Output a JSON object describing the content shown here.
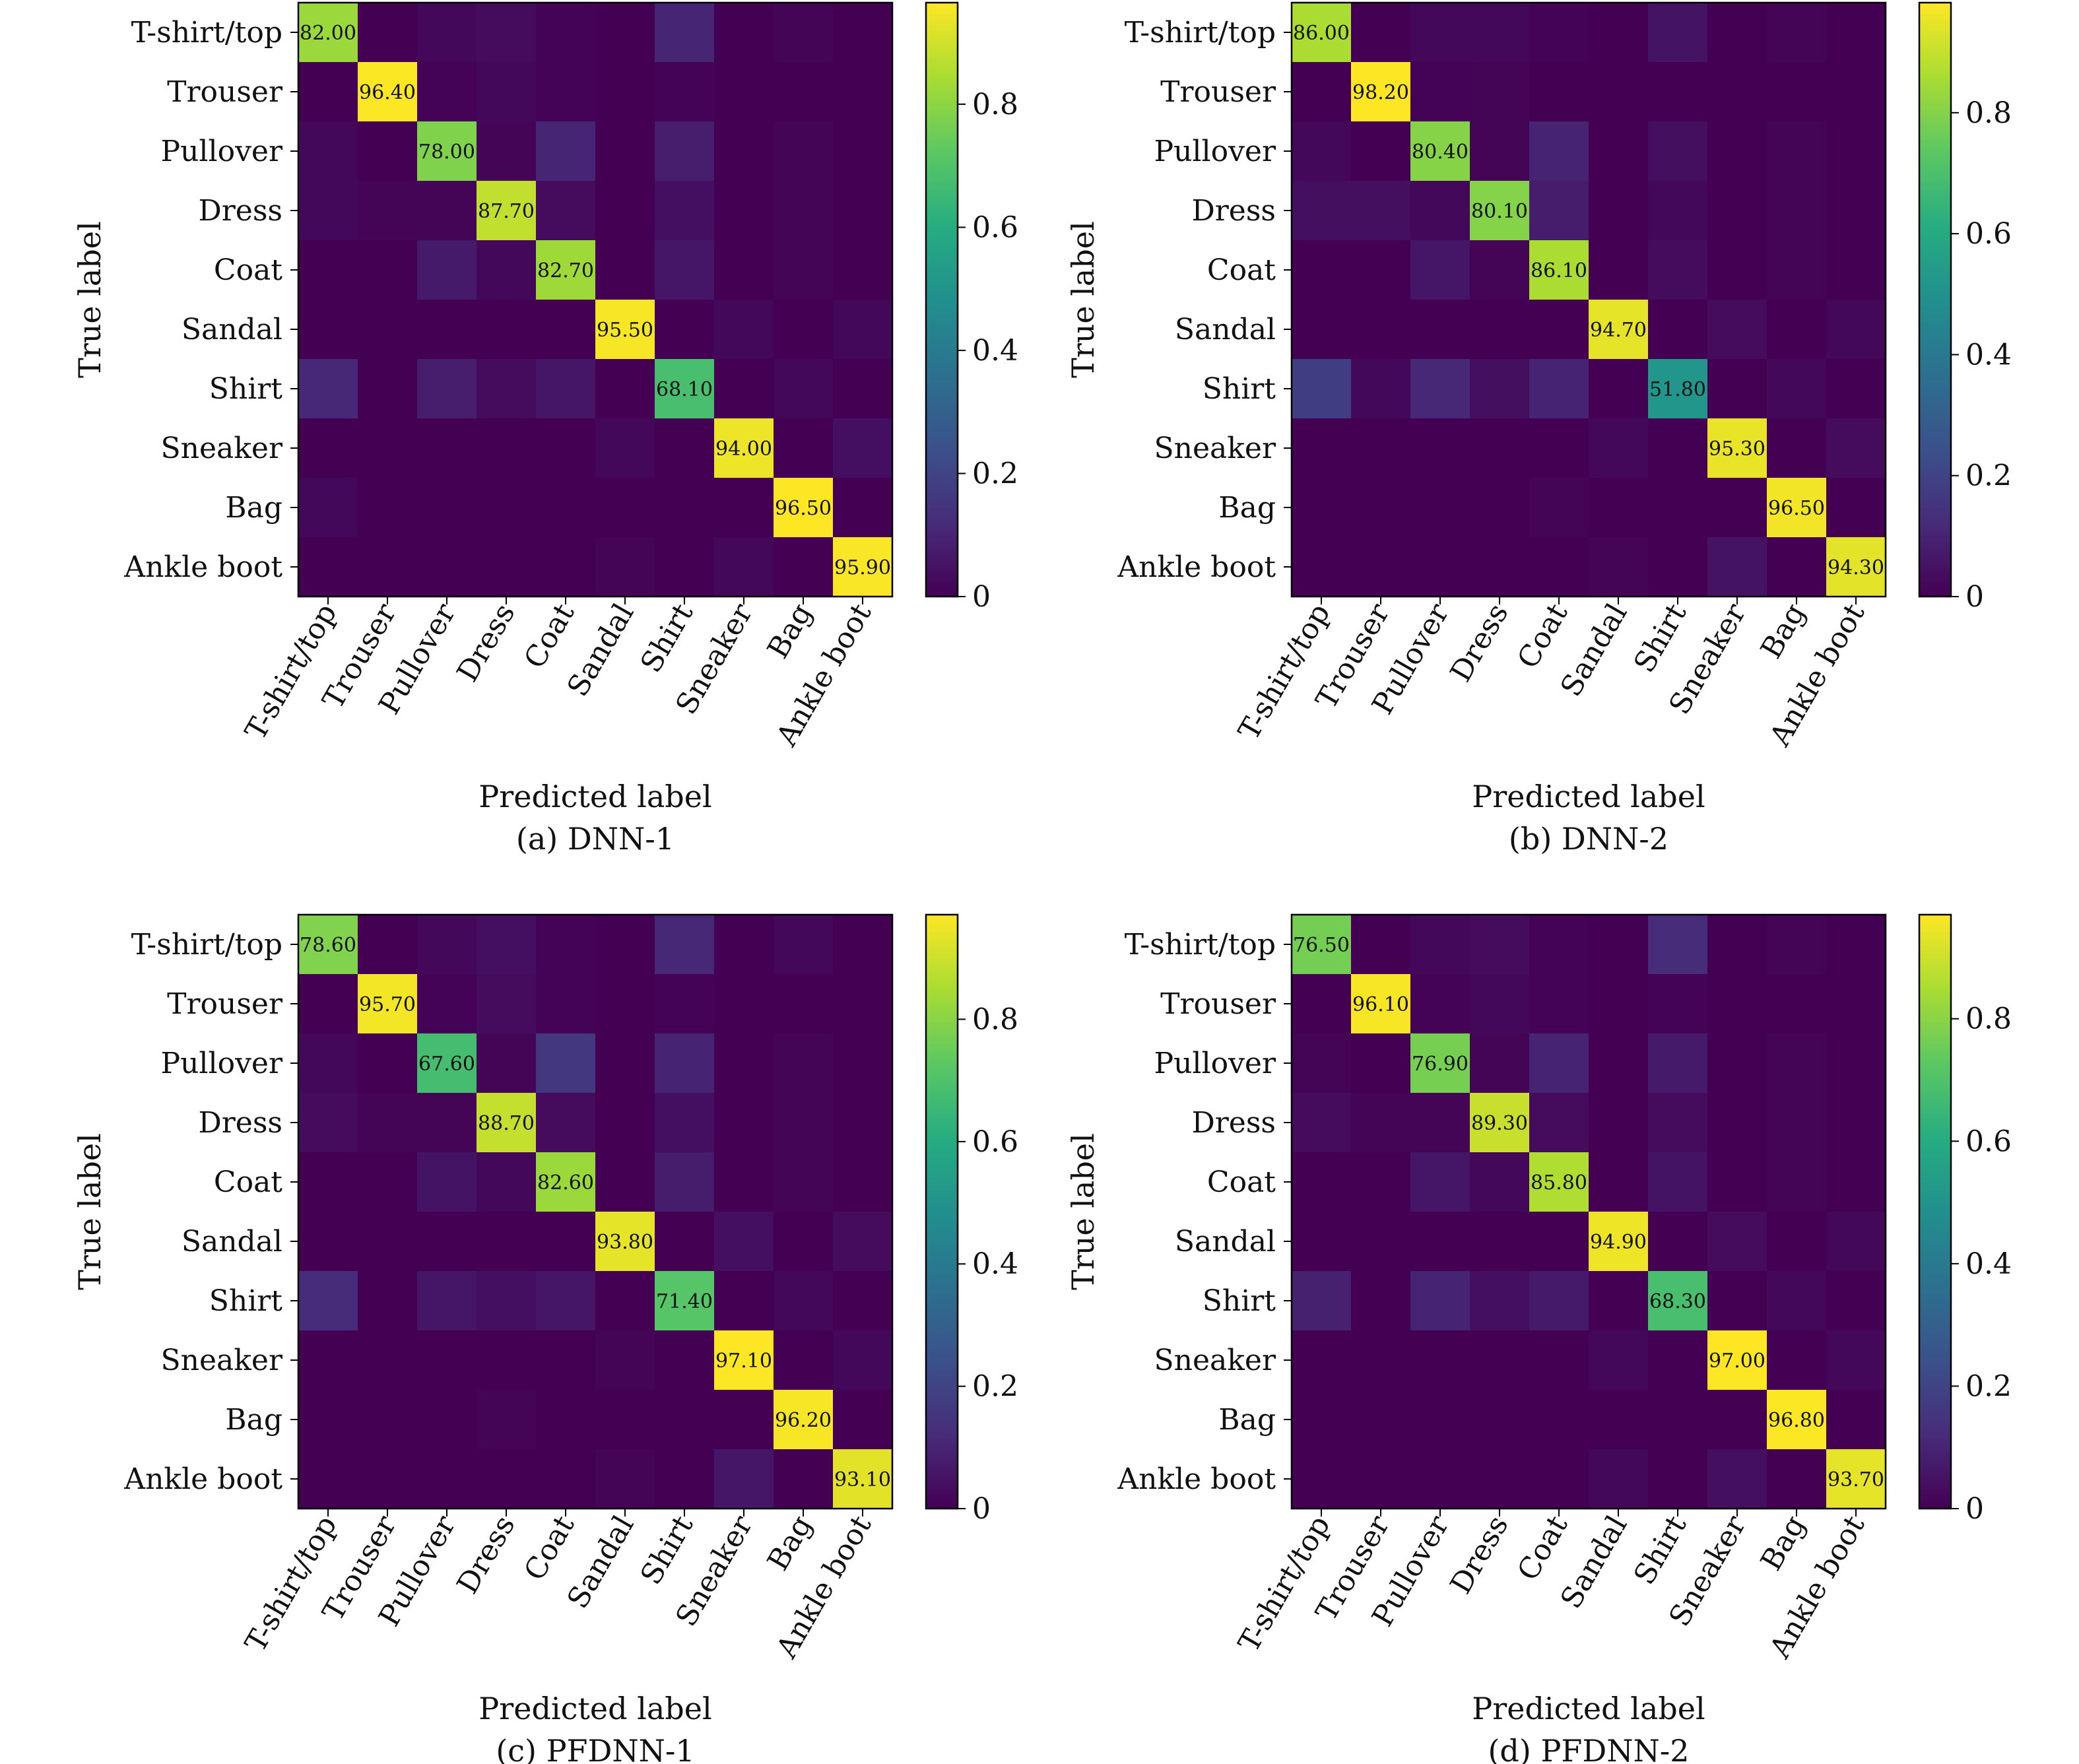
{
  "shared": {
    "classes": [
      "T-shirt/top",
      "Trouser",
      "Pullover",
      "Dress",
      "Coat",
      "Sandal",
      "Shirt",
      "Sneaker",
      "Bag",
      "Ankle boot"
    ],
    "xlabel": "Predicted label",
    "ylabel": "True label",
    "colorbar_ticks": [
      "0",
      "0.2",
      "0.4",
      "0.6",
      "0.8"
    ],
    "colormap": "viridis"
  },
  "chart_data": [
    {
      "type": "heatmap",
      "caption": "(a) DNN-1",
      "xlabel": "Predicted label",
      "ylabel": "True label",
      "colorbar": {
        "min": 0,
        "max": 0.965,
        "ticks": [
          0,
          0.2,
          0.4,
          0.6,
          0.8
        ]
      },
      "x": [
        "T-shirt/top",
        "Trouser",
        "Pullover",
        "Dress",
        "Coat",
        "Sandal",
        "Shirt",
        "Sneaker",
        "Bag",
        "Ankle boot"
      ],
      "y": [
        "T-shirt/top",
        "Trouser",
        "Pullover",
        "Dress",
        "Coat",
        "Sandal",
        "Shirt",
        "Sneaker",
        "Bag",
        "Ankle boot"
      ],
      "diagonal_labels": [
        "82.00",
        "96.40",
        "78.00",
        "87.70",
        "82.70",
        "95.50",
        "68.10",
        "94.00",
        "96.50",
        "95.90"
      ],
      "values": [
        [
          0.82,
          0.0,
          0.02,
          0.03,
          0.005,
          0.0,
          0.1,
          0.0,
          0.01,
          0.0
        ],
        [
          0.0,
          0.964,
          0.005,
          0.02,
          0.005,
          0.0,
          0.005,
          0.0,
          0.0,
          0.0
        ],
        [
          0.02,
          0.0,
          0.78,
          0.01,
          0.1,
          0.0,
          0.08,
          0.0,
          0.01,
          0.0
        ],
        [
          0.02,
          0.01,
          0.01,
          0.877,
          0.03,
          0.0,
          0.04,
          0.0,
          0.01,
          0.0
        ],
        [
          0.0,
          0.0,
          0.07,
          0.02,
          0.827,
          0.0,
          0.06,
          0.0,
          0.01,
          0.0
        ],
        [
          0.0,
          0.0,
          0.0,
          0.0,
          0.0,
          0.955,
          0.0,
          0.02,
          0.0,
          0.02
        ],
        [
          0.11,
          0.0,
          0.08,
          0.03,
          0.06,
          0.0,
          0.681,
          0.0,
          0.02,
          0.0
        ],
        [
          0.0,
          0.0,
          0.0,
          0.0,
          0.0,
          0.02,
          0.0,
          0.94,
          0.0,
          0.04
        ],
        [
          0.02,
          0.0,
          0.0,
          0.0,
          0.0,
          0.0,
          0.0,
          0.0,
          0.965,
          0.0
        ],
        [
          0.0,
          0.0,
          0.0,
          0.0,
          0.0,
          0.01,
          0.0,
          0.02,
          0.0,
          0.959
        ]
      ]
    },
    {
      "type": "heatmap",
      "caption": "(b) DNN-2",
      "xlabel": "Predicted label",
      "ylabel": "True label",
      "colorbar": {
        "min": 0,
        "max": 0.982,
        "ticks": [
          0,
          0.2,
          0.4,
          0.6,
          0.8
        ]
      },
      "x": [
        "T-shirt/top",
        "Trouser",
        "Pullover",
        "Dress",
        "Coat",
        "Sandal",
        "Shirt",
        "Sneaker",
        "Bag",
        "Ankle boot"
      ],
      "y": [
        "T-shirt/top",
        "Trouser",
        "Pullover",
        "Dress",
        "Coat",
        "Sandal",
        "Shirt",
        "Sneaker",
        "Bag",
        "Ankle boot"
      ],
      "diagonal_labels": [
        "86.00",
        "98.20",
        "80.40",
        "80.10",
        "86.10",
        "94.70",
        "51.80",
        "95.30",
        "96.50",
        "94.30"
      ],
      "values": [
        [
          0.86,
          0.0,
          0.02,
          0.02,
          0.005,
          0.0,
          0.05,
          0.0,
          0.01,
          0.0
        ],
        [
          0.0,
          0.982,
          0.005,
          0.01,
          0.0,
          0.0,
          0.0,
          0.0,
          0.0,
          0.0
        ],
        [
          0.02,
          0.0,
          0.804,
          0.01,
          0.1,
          0.0,
          0.04,
          0.0,
          0.01,
          0.0
        ],
        [
          0.04,
          0.04,
          0.02,
          0.801,
          0.08,
          0.0,
          0.02,
          0.0,
          0.01,
          0.0
        ],
        [
          0.0,
          0.0,
          0.06,
          0.01,
          0.861,
          0.0,
          0.03,
          0.0,
          0.01,
          0.0
        ],
        [
          0.0,
          0.0,
          0.0,
          0.0,
          0.0,
          0.947,
          0.0,
          0.03,
          0.0,
          0.02
        ],
        [
          0.18,
          0.02,
          0.11,
          0.04,
          0.1,
          0.0,
          0.518,
          0.0,
          0.02,
          0.0
        ],
        [
          0.0,
          0.0,
          0.0,
          0.0,
          0.0,
          0.02,
          0.0,
          0.953,
          0.0,
          0.03
        ],
        [
          0.0,
          0.0,
          0.0,
          0.0,
          0.01,
          0.0,
          0.0,
          0.0,
          0.965,
          0.0
        ],
        [
          0.0,
          0.0,
          0.0,
          0.0,
          0.0,
          0.01,
          0.0,
          0.05,
          0.0,
          0.943
        ]
      ]
    },
    {
      "type": "heatmap",
      "caption": "(c) PFDNN-1",
      "xlabel": "Predicted label",
      "ylabel": "True label",
      "colorbar": {
        "min": 0,
        "max": 0.971,
        "ticks": [
          0,
          0.2,
          0.4,
          0.6,
          0.8
        ]
      },
      "x": [
        "T-shirt/top",
        "Trouser",
        "Pullover",
        "Dress",
        "Coat",
        "Sandal",
        "Shirt",
        "Sneaker",
        "Bag",
        "Ankle boot"
      ],
      "y": [
        "T-shirt/top",
        "Trouser",
        "Pullover",
        "Dress",
        "Coat",
        "Sandal",
        "Shirt",
        "Sneaker",
        "Bag",
        "Ankle boot"
      ],
      "diagonal_labels": [
        "78.60",
        "95.70",
        "67.60",
        "88.70",
        "82.60",
        "93.80",
        "71.40",
        "97.10",
        "96.20",
        "93.10"
      ],
      "values": [
        [
          0.786,
          0.0,
          0.02,
          0.04,
          0.005,
          0.0,
          0.11,
          0.0,
          0.02,
          0.0
        ],
        [
          0.0,
          0.957,
          0.005,
          0.03,
          0.005,
          0.0,
          0.005,
          0.0,
          0.0,
          0.0
        ],
        [
          0.02,
          0.0,
          0.676,
          0.01,
          0.16,
          0.0,
          0.1,
          0.0,
          0.01,
          0.0
        ],
        [
          0.03,
          0.01,
          0.01,
          0.887,
          0.03,
          0.0,
          0.04,
          0.0,
          0.01,
          0.0
        ],
        [
          0.0,
          0.0,
          0.05,
          0.02,
          0.826,
          0.0,
          0.08,
          0.0,
          0.01,
          0.0
        ],
        [
          0.0,
          0.0,
          0.0,
          0.0,
          0.0,
          0.938,
          0.0,
          0.04,
          0.0,
          0.03
        ],
        [
          0.12,
          0.0,
          0.06,
          0.04,
          0.06,
          0.0,
          0.714,
          0.0,
          0.02,
          0.0
        ],
        [
          0.0,
          0.0,
          0.0,
          0.0,
          0.0,
          0.01,
          0.0,
          0.971,
          0.0,
          0.02
        ],
        [
          0.0,
          0.0,
          0.0,
          0.01,
          0.0,
          0.0,
          0.0,
          0.0,
          0.962,
          0.0
        ],
        [
          0.0,
          0.0,
          0.0,
          0.0,
          0.0,
          0.01,
          0.0,
          0.06,
          0.0,
          0.931
        ]
      ]
    },
    {
      "type": "heatmap",
      "caption": "(d) PFDNN-2",
      "xlabel": "Predicted label",
      "ylabel": "True label",
      "colorbar": {
        "min": 0,
        "max": 0.97,
        "ticks": [
          0,
          0.2,
          0.4,
          0.6,
          0.8
        ]
      },
      "x": [
        "T-shirt/top",
        "Trouser",
        "Pullover",
        "Dress",
        "Coat",
        "Sandal",
        "Shirt",
        "Sneaker",
        "Bag",
        "Ankle boot"
      ],
      "y": [
        "T-shirt/top",
        "Trouser",
        "Pullover",
        "Dress",
        "Coat",
        "Sandal",
        "Shirt",
        "Sneaker",
        "Bag",
        "Ankle boot"
      ],
      "diagonal_labels": [
        "76.50",
        "96.10",
        "76.90",
        "89.30",
        "85.80",
        "94.90",
        "68.30",
        "97.00",
        "96.80",
        "93.70"
      ],
      "values": [
        [
          0.765,
          0.0,
          0.02,
          0.03,
          0.005,
          0.0,
          0.12,
          0.0,
          0.01,
          0.0
        ],
        [
          0.0,
          0.961,
          0.005,
          0.02,
          0.005,
          0.0,
          0.005,
          0.0,
          0.0,
          0.0
        ],
        [
          0.01,
          0.0,
          0.769,
          0.01,
          0.1,
          0.0,
          0.07,
          0.0,
          0.01,
          0.0
        ],
        [
          0.03,
          0.01,
          0.01,
          0.893,
          0.03,
          0.0,
          0.03,
          0.0,
          0.01,
          0.0
        ],
        [
          0.0,
          0.0,
          0.06,
          0.02,
          0.858,
          0.0,
          0.05,
          0.0,
          0.01,
          0.0
        ],
        [
          0.0,
          0.0,
          0.0,
          0.0,
          0.0,
          0.949,
          0.0,
          0.03,
          0.0,
          0.02
        ],
        [
          0.09,
          0.0,
          0.1,
          0.04,
          0.07,
          0.0,
          0.683,
          0.0,
          0.02,
          0.0
        ],
        [
          0.0,
          0.0,
          0.0,
          0.0,
          0.0,
          0.02,
          0.0,
          0.97,
          0.0,
          0.02
        ],
        [
          0.0,
          0.0,
          0.0,
          0.0,
          0.0,
          0.0,
          0.0,
          0.0,
          0.968,
          0.0
        ],
        [
          0.0,
          0.0,
          0.0,
          0.0,
          0.0,
          0.02,
          0.0,
          0.04,
          0.0,
          0.937
        ]
      ]
    }
  ]
}
